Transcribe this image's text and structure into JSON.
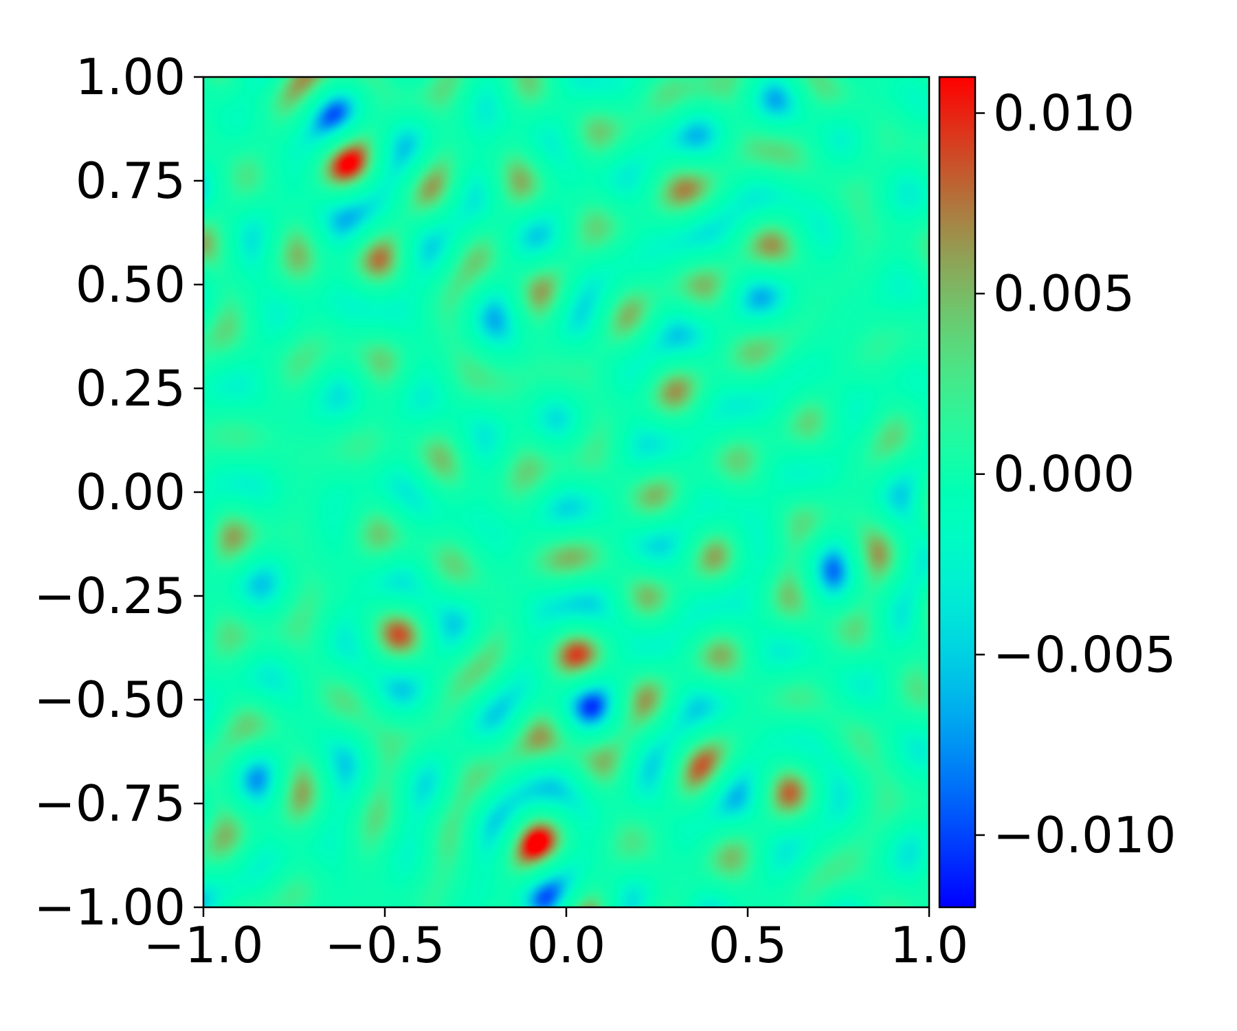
{
  "chart_data": {
    "type": "heatmap",
    "title": "",
    "xlabel": "",
    "ylabel": "",
    "xlim": [
      -1.0,
      1.0
    ],
    "ylim": [
      -1.0,
      1.0
    ],
    "x_ticks": [
      -1.0,
      -0.5,
      0.0,
      0.5,
      1.0
    ],
    "x_tick_labels": [
      "−1.0",
      "−0.5",
      "0.0",
      "0.5",
      "1.0"
    ],
    "y_ticks": [
      1.0,
      0.75,
      0.5,
      0.25,
      0.0,
      -0.25,
      -0.5,
      -0.75,
      -1.0
    ],
    "y_tick_labels": [
      "1.00",
      "0.75",
      "0.50",
      "0.25",
      "0.00",
      "−0.25",
      "−0.50",
      "−0.75",
      "−1.00"
    ],
    "colormap": "rainbow",
    "colorbar": {
      "range": [
        -0.012,
        0.011
      ],
      "ticks": [
        0.01,
        0.005,
        0.0,
        -0.005,
        -0.01
      ],
      "tick_labels": [
        "0.010",
        "0.005",
        "0.000",
        "−0.005",
        "−0.010"
      ]
    },
    "grid": false,
    "field_description": "oscillatory spotted pattern of small positive (red) and negative (blue) peaks around 0 (green)"
  }
}
